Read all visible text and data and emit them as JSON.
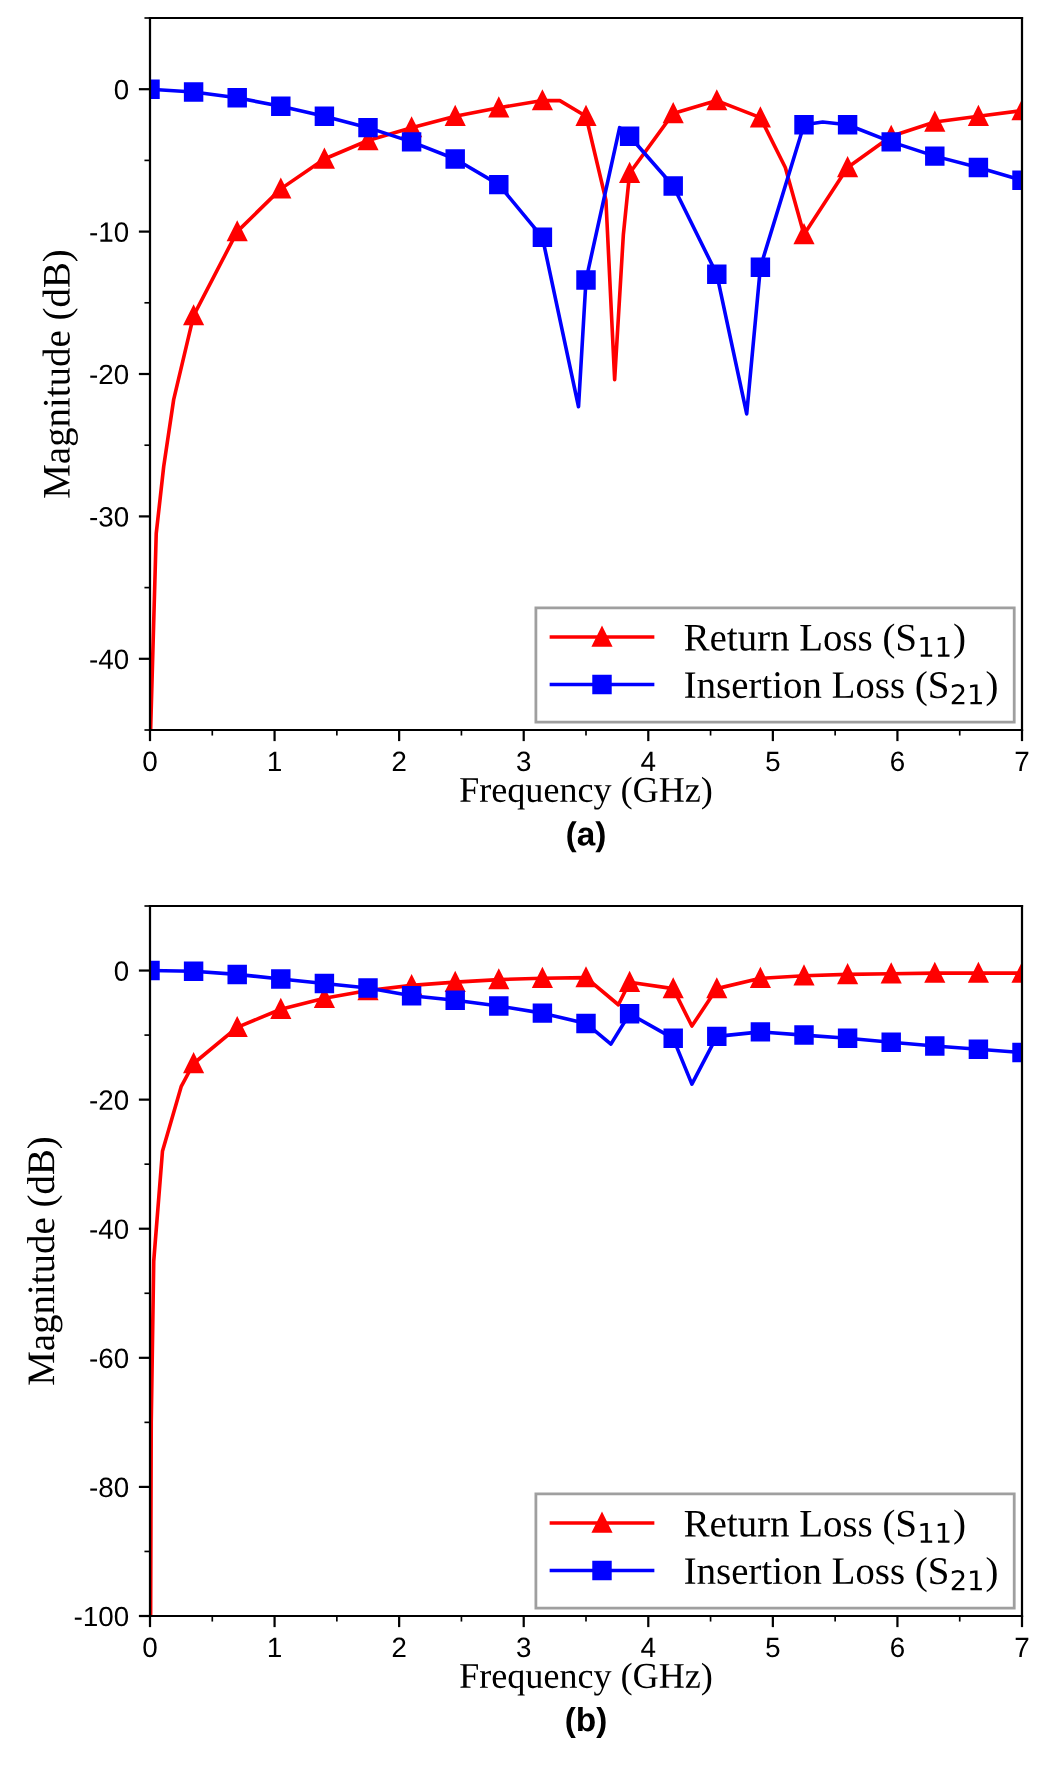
{
  "chart_data": [
    {
      "type": "line",
      "xlabel": "Frequency (GHz)",
      "ylabel": "Magnitude (dB)",
      "annotations": [
        "(a)"
      ],
      "xlim": [
        0,
        7
      ],
      "xticks": [
        0,
        1,
        2,
        3,
        4,
        5,
        6,
        7
      ],
      "ylim": [
        -45,
        5
      ],
      "yticks": [
        -40,
        -30,
        -20,
        -10,
        0
      ],
      "legend": "bottom right",
      "grid": false,
      "line_style": "solid",
      "series": [
        {
          "name": "Return Loss (S$_{11}$)",
          "color": "#ff0000",
          "marker": "triangle",
          "x": [
            0.005,
            0.05,
            0.11,
            0.19,
            0.35,
            0.7,
            1.05,
            1.4,
            1.75,
            2.1,
            2.45,
            2.8,
            3.15,
            3.29,
            3.5,
            3.66,
            3.73,
            3.8,
            3.85,
            4.2,
            4.55,
            4.9,
            5.1,
            5.25,
            5.6,
            5.95,
            6.3,
            6.65,
            7.0
          ],
          "values": [
            -45,
            -31.2,
            -26.5,
            -21.8,
            -15.9,
            -10,
            -7.0,
            -4.9,
            -3.6,
            -2.7,
            -1.9,
            -1.3,
            -0.8,
            -0.8,
            -1.9,
            -7.8,
            -20.4,
            -10.2,
            -5.9,
            -1.7,
            -0.8,
            -2.0,
            -5.5,
            -10.2,
            -5.5,
            -3.3,
            -2.3,
            -1.9,
            -1.5
          ]
        },
        {
          "name": "Insertion Loss (S$_{21}$)",
          "color": "#0000ff",
          "marker": "square",
          "x": [
            0,
            0.35,
            0.7,
            1.05,
            1.4,
            1.75,
            2.1,
            2.45,
            2.8,
            3.15,
            3.44,
            3.5,
            3.77,
            3.85,
            4.2,
            4.55,
            4.79,
            4.9,
            5.25,
            5.4,
            5.6,
            5.95,
            6.3,
            6.65,
            7.0
          ],
          "values": [
            0,
            -0.2,
            -0.6,
            -1.2,
            -1.9,
            -2.7,
            -3.7,
            -4.9,
            -6.7,
            -10.4,
            -22.3,
            -13.4,
            -2.7,
            -3.3,
            -6.8,
            -13.0,
            -22.8,
            -12.5,
            -2.5,
            -2.3,
            -2.5,
            -3.7,
            -4.7,
            -5.5,
            -6.4
          ]
        }
      ]
    },
    {
      "type": "line",
      "xlabel": "Frequency (GHz)",
      "ylabel": "Magnitude (dB)",
      "annotations": [
        "(b)"
      ],
      "xlim": [
        0,
        7
      ],
      "xticks": [
        0,
        1,
        2,
        3,
        4,
        5,
        6,
        7
      ],
      "ylim": [
        -100,
        10
      ],
      "yticks": [
        -100,
        -80,
        -60,
        -40,
        -20,
        0
      ],
      "legend": "bottom right",
      "grid": false,
      "line_style": "solid",
      "series": [
        {
          "name": "Return Loss (S$_{11}$)",
          "color": "#ff0000",
          "marker": "triangle",
          "x": [
            0.005,
            0.01,
            0.03,
            0.1,
            0.25,
            0.35,
            0.7,
            1.05,
            1.4,
            1.75,
            2.1,
            2.45,
            2.8,
            3.15,
            3.5,
            3.76,
            3.85,
            4.2,
            4.35,
            4.55,
            4.9,
            5.25,
            5.6,
            5.95,
            6.3,
            6.65,
            7.0
          ],
          "values": [
            -100,
            -70,
            -45,
            -28,
            -18,
            -14.4,
            -8.8,
            -6.0,
            -4.3,
            -3.1,
            -2.3,
            -1.8,
            -1.4,
            -1.2,
            -1.1,
            -5.3,
            -1.8,
            -2.8,
            -8.6,
            -2.8,
            -1.2,
            -0.8,
            -0.6,
            -0.5,
            -0.4,
            -0.4,
            -0.4
          ]
        },
        {
          "name": "Insertion Loss (S$_{21}$)",
          "color": "#0000ff",
          "marker": "square",
          "x": [
            0,
            0.35,
            0.7,
            1.05,
            1.4,
            1.75,
            2.1,
            2.45,
            2.8,
            3.15,
            3.5,
            3.7,
            3.85,
            4.2,
            4.35,
            4.55,
            4.9,
            5.25,
            5.6,
            5.95,
            6.3,
            6.65,
            7.0
          ],
          "values": [
            0,
            -0.1,
            -0.6,
            -1.3,
            -2.0,
            -2.7,
            -3.9,
            -4.6,
            -5.5,
            -6.6,
            -8.2,
            -11.4,
            -6.7,
            -10.5,
            -17.6,
            -10.2,
            -9.5,
            -10.0,
            -10.5,
            -11.1,
            -11.7,
            -12.2,
            -12.7
          ]
        }
      ]
    }
  ]
}
